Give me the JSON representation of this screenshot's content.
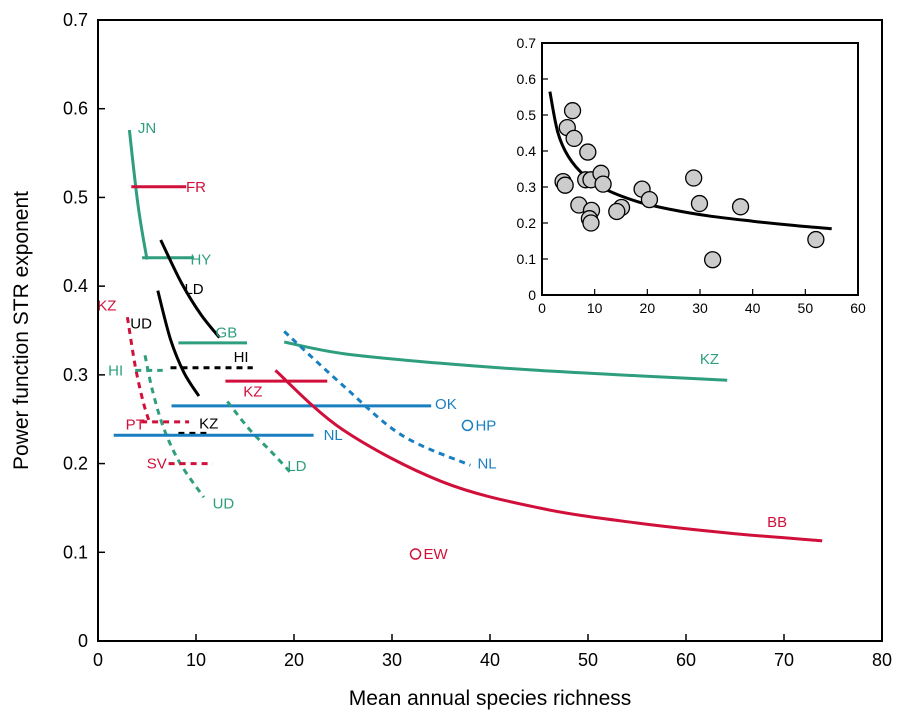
{
  "chart_data": [
    {
      "type": "line",
      "title": "",
      "xlabel": "Mean annual species richness",
      "ylabel": "Power function STR exponent",
      "xlim": [
        0,
        80
      ],
      "ylim": [
        0,
        0.7
      ],
      "x_ticks": [
        "0",
        "10",
        "20",
        "30",
        "40",
        "50",
        "60",
        "70",
        "80"
      ],
      "y_ticks": [
        "0",
        "0.1",
        "0.2",
        "0.3",
        "0.4",
        "0.5",
        "0.6",
        "0.7"
      ],
      "grid": false,
      "colors": {
        "green": "#2e9e7e",
        "red": "#d0103a",
        "blue": "#1a7fc1",
        "black": "#000000"
      },
      "series": [
        {
          "name": "JN",
          "color": "green",
          "dash": false,
          "x": [
            3.2,
            4.1,
            5.0
          ],
          "y": [
            0.576,
            0.49,
            0.43
          ],
          "label_at": [
            5.0,
            0.578
          ]
        },
        {
          "name": "FR",
          "color": "red",
          "dash": false,
          "x": [
            3.4,
            9.0
          ],
          "y": [
            0.512,
            0.512
          ],
          "label_at": [
            10.0,
            0.512
          ]
        },
        {
          "name": "HY",
          "color": "green",
          "dash": false,
          "x": [
            4.5,
            9.8
          ],
          "y": [
            0.432,
            0.432
          ],
          "label_at": [
            10.5,
            0.43
          ]
        },
        {
          "name": "LD",
          "color": "black",
          "dash": false,
          "x": [
            6.4,
            8.5,
            10.5,
            12.4
          ],
          "y": [
            0.452,
            0.404,
            0.368,
            0.342
          ],
          "label_at": [
            9.8,
            0.397
          ]
        },
        {
          "name": "UD",
          "color": "black",
          "dash": false,
          "x": [
            6.1,
            7.4,
            8.8,
            10.3
          ],
          "y": [
            0.395,
            0.34,
            0.302,
            0.276
          ],
          "label_at": [
            4.4,
            0.358
          ]
        },
        {
          "name": "KZ",
          "color": "red",
          "dash": true,
          "x": [
            3.0,
            3.8,
            4.6,
            5.3
          ],
          "y": [
            0.365,
            0.31,
            0.27,
            0.245
          ],
          "label_at": [
            0.9,
            0.378
          ]
        },
        {
          "name": "GB",
          "color": "green",
          "dash": false,
          "x": [
            8.2,
            15.2
          ],
          "y": [
            0.336,
            0.336
          ],
          "label_at": [
            13.1,
            0.348
          ]
        },
        {
          "name": "KZ",
          "color": "green",
          "dash": false,
          "x": [
            19.0,
            25,
            35,
            45,
            55,
            64.2
          ],
          "y": [
            0.337,
            0.324,
            0.313,
            0.305,
            0.299,
            0.294
          ],
          "label_at": [
            62.4,
            0.318
          ]
        },
        {
          "name": "HI",
          "color": "black",
          "dash": true,
          "x": [
            7.4,
            15.8
          ],
          "y": [
            0.308,
            0.308
          ],
          "label_at": [
            14.6,
            0.32
          ]
        },
        {
          "name": "HI",
          "color": "green",
          "dash": true,
          "x": [
            3.8,
            6.6
          ],
          "y": [
            0.305,
            0.305
          ],
          "label_at": [
            1.8,
            0.305
          ]
        },
        {
          "name": "UD",
          "color": "green",
          "dash": true,
          "x": [
            4.8,
            5.5,
            6.7,
            8.4,
            10.8
          ],
          "y": [
            0.322,
            0.285,
            0.24,
            0.2,
            0.162
          ],
          "label_at": [
            12.8,
            0.155
          ]
        },
        {
          "name": "KZ",
          "color": "red",
          "dash": false,
          "x": [
            13.0,
            23.4
          ],
          "y": [
            0.293,
            0.293
          ],
          "label_at": [
            15.8,
            0.281
          ]
        },
        {
          "name": "OK",
          "color": "blue",
          "dash": false,
          "x": [
            7.5,
            34.0
          ],
          "y": [
            0.265,
            0.265
          ],
          "label_at": [
            35.5,
            0.267
          ]
        },
        {
          "name": "LD",
          "color": "green",
          "dash": true,
          "x": [
            13.2,
            15.5,
            17.8,
            19.8
          ],
          "y": [
            0.27,
            0.238,
            0.212,
            0.188
          ],
          "label_at": [
            20.3,
            0.197
          ]
        },
        {
          "name": "NL",
          "color": "blue",
          "dash": true,
          "x": [
            19.0,
            25,
            31,
            38.0
          ],
          "y": [
            0.349,
            0.288,
            0.232,
            0.198
          ],
          "label_at": [
            39.7,
            0.2
          ]
        },
        {
          "name": "PT",
          "color": "red",
          "dash": true,
          "x": [
            4.4,
            9.3
          ],
          "y": [
            0.247,
            0.247
          ],
          "label_at": [
            3.8,
            0.244
          ]
        },
        {
          "name": "KZ",
          "color": "black",
          "dash": true,
          "x": [
            8.2,
            11.3
          ],
          "y": [
            0.234,
            0.234
          ],
          "label_at": [
            11.3,
            0.245
          ]
        },
        {
          "name": "NL",
          "color": "blue",
          "dash": false,
          "x": [
            1.6,
            22.0
          ],
          "y": [
            0.232,
            0.232
          ],
          "label_at": [
            24.0,
            0.232
          ]
        },
        {
          "name": "SV",
          "color": "red",
          "dash": true,
          "x": [
            7.2,
            11.7
          ],
          "y": [
            0.2,
            0.2
          ],
          "label_at": [
            6.0,
            0.2
          ]
        },
        {
          "name": "BB",
          "color": "red",
          "dash": false,
          "x": [
            18.1,
            25,
            35,
            45,
            55,
            65,
            73.9
          ],
          "y": [
            0.305,
            0.238,
            0.18,
            0.15,
            0.133,
            0.121,
            0.113
          ],
          "label_at": [
            69.3,
            0.134
          ]
        }
      ],
      "points": [
        {
          "name": "HP",
          "color": "blue",
          "x": 37.7,
          "y": 0.243
        },
        {
          "name": "EW",
          "color": "red",
          "x": 32.4,
          "y": 0.098
        }
      ]
    },
    {
      "type": "scatter",
      "title": "",
      "xlabel": "",
      "ylabel": "",
      "xlim": [
        0,
        60
      ],
      "ylim": [
        0,
        0.7
      ],
      "x_ticks": [
        "0",
        "10",
        "20",
        "30",
        "40",
        "50",
        "60"
      ],
      "y_ticks": [
        "0",
        "0.1",
        "0.2",
        "0.3",
        "0.4",
        "0.5",
        "0.6",
        "0.7"
      ],
      "x": [
        4.8,
        5.8,
        4.0,
        4.4,
        7.0,
        8.3,
        6.1,
        8.7,
        9.3,
        11.2,
        11.6,
        9.4,
        9.0,
        9.3,
        15.1,
        14.2,
        19.0,
        20.4,
        28.8,
        29.9,
        37.7,
        32.4,
        52.0
      ],
      "y": [
        0.465,
        0.512,
        0.315,
        0.305,
        0.25,
        0.32,
        0.435,
        0.397,
        0.32,
        0.338,
        0.308,
        0.235,
        0.212,
        0.2,
        0.243,
        0.232,
        0.294,
        0.265,
        0.325,
        0.254,
        0.245,
        0.098,
        0.154
      ],
      "fit": {
        "type": "line",
        "x": [
          1.5,
          3,
          5,
          8,
          12,
          18,
          25,
          32,
          40,
          48,
          55
        ],
        "y": [
          0.565,
          0.452,
          0.385,
          0.333,
          0.294,
          0.26,
          0.236,
          0.219,
          0.205,
          0.193,
          0.184
        ]
      }
    }
  ]
}
